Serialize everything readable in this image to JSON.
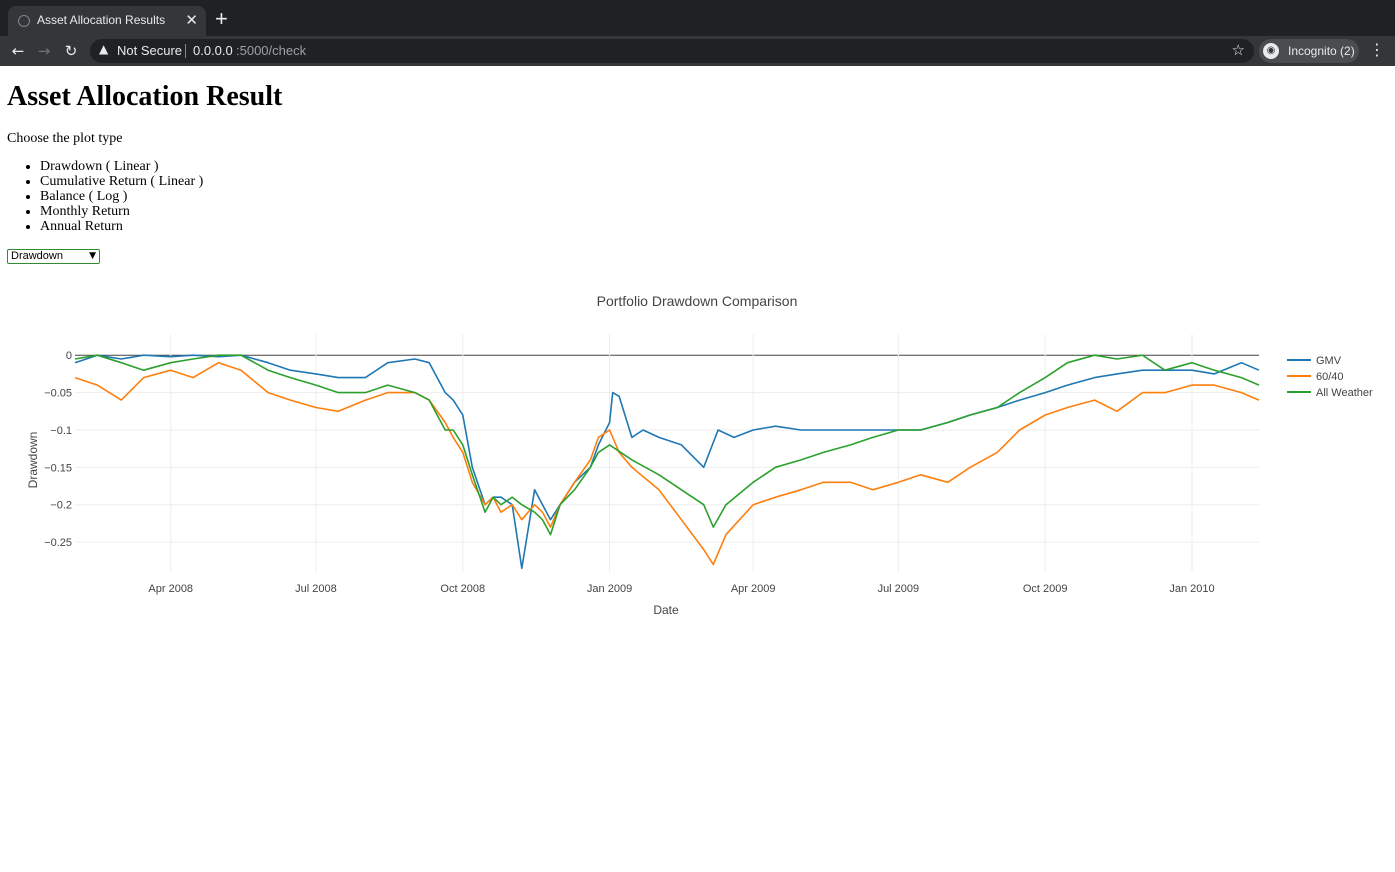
{
  "browser": {
    "tab_title": "Asset Allocation Results",
    "new_tab_symbol": "+",
    "security_label": "Not Secure",
    "url_host": "0.0.0.0",
    "url_path": ":5000/check",
    "profile_label": "Incognito (2)"
  },
  "page": {
    "title": "Asset Allocation Result",
    "prompt": "Choose the plot type",
    "plot_types": [
      "Drawdown ( Linear )",
      "Cumulative Return ( Linear )",
      "Balance ( Log )",
      "Monthly Return",
      "Annual Return"
    ],
    "select_value": "Drawdown"
  },
  "chart_data": {
    "type": "line",
    "title": "Portfolio Drawdown Comparison",
    "xlabel": "Date",
    "ylabel": "Drawdown",
    "xlim": [
      "2008-02-01",
      "2010-02-12"
    ],
    "ylim": [
      -0.29,
      0.015
    ],
    "yticks": [
      0,
      -0.05,
      -0.1,
      -0.15,
      -0.2,
      -0.25
    ],
    "ytick_labels": [
      "0",
      "−0.05",
      "−0.1",
      "−0.15",
      "−0.2",
      "−0.25"
    ],
    "xticks": [
      "2008-04-01",
      "2008-07-01",
      "2008-10-01",
      "2009-01-01",
      "2009-04-01",
      "2009-07-01",
      "2009-10-01",
      "2010-01-01"
    ],
    "xtick_labels": [
      "Apr 2008",
      "Jul 2008",
      "Oct 2008",
      "Jan 2009",
      "Apr 2009",
      "Jul 2009",
      "Oct 2009",
      "Jan 2010"
    ],
    "grid": true,
    "legend_position": "right",
    "series": [
      {
        "name": "GMV",
        "color": "#1f77b4",
        "x": [
          "2008-02-01",
          "2008-02-15",
          "2008-03-01",
          "2008-03-15",
          "2008-04-01",
          "2008-04-15",
          "2008-05-01",
          "2008-05-15",
          "2008-06-01",
          "2008-06-15",
          "2008-07-01",
          "2008-07-15",
          "2008-08-01",
          "2008-08-15",
          "2008-09-01",
          "2008-09-10",
          "2008-09-20",
          "2008-09-25",
          "2008-10-01",
          "2008-10-07",
          "2008-10-15",
          "2008-10-20",
          "2008-10-25",
          "2008-11-01",
          "2008-11-07",
          "2008-11-15",
          "2008-11-20",
          "2008-11-25",
          "2008-12-01",
          "2008-12-10",
          "2008-12-20",
          "2008-12-25",
          "2009-01-01",
          "2009-01-03",
          "2009-01-07",
          "2009-01-15",
          "2009-01-22",
          "2009-02-01",
          "2009-02-15",
          "2009-03-01",
          "2009-03-10",
          "2009-03-20",
          "2009-04-01",
          "2009-04-15",
          "2009-05-01",
          "2009-05-15",
          "2009-06-01",
          "2009-06-15",
          "2009-07-01",
          "2009-07-15",
          "2009-08-01",
          "2009-08-15",
          "2009-09-01",
          "2009-09-15",
          "2009-10-01",
          "2009-10-15",
          "2009-11-01",
          "2009-11-15",
          "2009-12-01",
          "2009-12-15",
          "2010-01-01",
          "2010-01-15",
          "2010-02-01",
          "2010-02-12"
        ],
        "values": [
          -0.01,
          0,
          -0.005,
          0,
          -0.002,
          0,
          -0.002,
          0,
          -0.01,
          -0.02,
          -0.025,
          -0.03,
          -0.03,
          -0.01,
          -0.005,
          -0.01,
          -0.05,
          -0.06,
          -0.08,
          -0.15,
          -0.2,
          -0.19,
          -0.19,
          -0.2,
          -0.285,
          -0.18,
          -0.2,
          -0.22,
          -0.2,
          -0.17,
          -0.15,
          -0.12,
          -0.09,
          -0.05,
          -0.055,
          -0.11,
          -0.1,
          -0.11,
          -0.12,
          -0.15,
          -0.1,
          -0.11,
          -0.1,
          -0.095,
          -0.1,
          -0.1,
          -0.1,
          -0.1,
          -0.1,
          -0.1,
          -0.09,
          -0.08,
          -0.07,
          -0.06,
          -0.05,
          -0.04,
          -0.03,
          -0.025,
          -0.02,
          -0.02,
          -0.02,
          -0.025,
          -0.01,
          -0.02
        ]
      },
      {
        "name": "60/40",
        "color": "#ff7f0e",
        "x": [
          "2008-02-01",
          "2008-02-15",
          "2008-03-01",
          "2008-03-15",
          "2008-04-01",
          "2008-04-15",
          "2008-05-01",
          "2008-05-15",
          "2008-06-01",
          "2008-06-15",
          "2008-07-01",
          "2008-07-15",
          "2008-08-01",
          "2008-08-15",
          "2008-09-01",
          "2008-09-10",
          "2008-09-20",
          "2008-09-25",
          "2008-10-01",
          "2008-10-07",
          "2008-10-15",
          "2008-10-20",
          "2008-10-25",
          "2008-11-01",
          "2008-11-07",
          "2008-11-15",
          "2008-11-20",
          "2008-11-25",
          "2008-12-01",
          "2008-12-10",
          "2008-12-20",
          "2008-12-25",
          "2009-01-01",
          "2009-01-07",
          "2009-01-15",
          "2009-02-01",
          "2009-02-15",
          "2009-03-01",
          "2009-03-07",
          "2009-03-15",
          "2009-04-01",
          "2009-04-15",
          "2009-05-01",
          "2009-05-15",
          "2009-06-01",
          "2009-06-15",
          "2009-07-01",
          "2009-07-15",
          "2009-08-01",
          "2009-08-15",
          "2009-09-01",
          "2009-09-15",
          "2009-10-01",
          "2009-10-15",
          "2009-11-01",
          "2009-11-15",
          "2009-12-01",
          "2009-12-15",
          "2010-01-01",
          "2010-01-15",
          "2010-02-01",
          "2010-02-12"
        ],
        "values": [
          -0.03,
          -0.04,
          -0.06,
          -0.03,
          -0.02,
          -0.03,
          -0.01,
          -0.02,
          -0.05,
          -0.06,
          -0.07,
          -0.075,
          -0.06,
          -0.05,
          -0.05,
          -0.06,
          -0.09,
          -0.11,
          -0.13,
          -0.17,
          -0.2,
          -0.19,
          -0.21,
          -0.2,
          -0.22,
          -0.2,
          -0.21,
          -0.23,
          -0.2,
          -0.17,
          -0.14,
          -0.11,
          -0.1,
          -0.13,
          -0.15,
          -0.18,
          -0.22,
          -0.26,
          -0.28,
          -0.24,
          -0.2,
          -0.19,
          -0.18,
          -0.17,
          -0.17,
          -0.18,
          -0.17,
          -0.16,
          -0.17,
          -0.15,
          -0.13,
          -0.1,
          -0.08,
          -0.07,
          -0.06,
          -0.075,
          -0.05,
          -0.05,
          -0.04,
          -0.04,
          -0.05,
          -0.06
        ]
      },
      {
        "name": "All Weather",
        "color": "#2ca02c",
        "x": [
          "2008-02-01",
          "2008-02-15",
          "2008-03-01",
          "2008-03-15",
          "2008-04-01",
          "2008-04-15",
          "2008-05-01",
          "2008-05-15",
          "2008-06-01",
          "2008-06-15",
          "2008-07-01",
          "2008-07-15",
          "2008-08-01",
          "2008-08-15",
          "2008-09-01",
          "2008-09-10",
          "2008-09-20",
          "2008-09-25",
          "2008-10-01",
          "2008-10-07",
          "2008-10-15",
          "2008-10-20",
          "2008-10-25",
          "2008-11-01",
          "2008-11-07",
          "2008-11-15",
          "2008-11-20",
          "2008-11-25",
          "2008-12-01",
          "2008-12-10",
          "2008-12-20",
          "2008-12-25",
          "2009-01-01",
          "2009-01-15",
          "2009-02-01",
          "2009-02-15",
          "2009-03-01",
          "2009-03-07",
          "2009-03-15",
          "2009-04-01",
          "2009-04-15",
          "2009-05-01",
          "2009-05-15",
          "2009-06-01",
          "2009-06-15",
          "2009-07-01",
          "2009-07-15",
          "2009-08-01",
          "2009-08-15",
          "2009-09-01",
          "2009-09-15",
          "2009-10-01",
          "2009-10-15",
          "2009-11-01",
          "2009-11-15",
          "2009-12-01",
          "2009-12-15",
          "2010-01-01",
          "2010-01-15",
          "2010-02-01",
          "2010-02-12"
        ],
        "values": [
          -0.005,
          0,
          -0.01,
          -0.02,
          -0.01,
          -0.005,
          0,
          0,
          -0.02,
          -0.03,
          -0.04,
          -0.05,
          -0.05,
          -0.04,
          -0.05,
          -0.06,
          -0.1,
          -0.1,
          -0.12,
          -0.16,
          -0.21,
          -0.19,
          -0.2,
          -0.19,
          -0.2,
          -0.21,
          -0.22,
          -0.24,
          -0.2,
          -0.18,
          -0.15,
          -0.13,
          -0.12,
          -0.14,
          -0.16,
          -0.18,
          -0.2,
          -0.23,
          -0.2,
          -0.17,
          -0.15,
          -0.14,
          -0.13,
          -0.12,
          -0.11,
          -0.1,
          -0.1,
          -0.09,
          -0.08,
          -0.07,
          -0.05,
          -0.03,
          -0.01,
          0,
          -0.005,
          0,
          -0.02,
          -0.01,
          -0.02,
          -0.03,
          -0.04
        ]
      }
    ]
  }
}
